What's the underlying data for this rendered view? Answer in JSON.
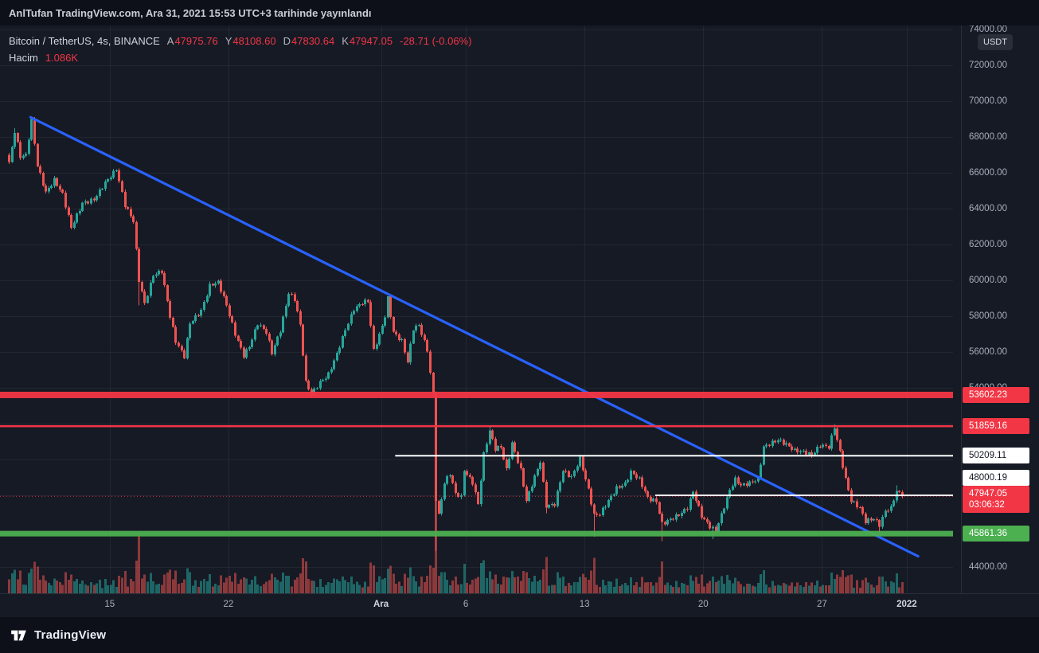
{
  "header": {
    "published_text": "AnlTufan TradingView.com, Ara 31, 2021 15:53 UTC+3 tarihinde yayınlandı"
  },
  "legend": {
    "title": "Bitcoin / TetherUS, 4s, BINANCE",
    "ohlc": [
      {
        "label": "A",
        "value": "47975.76"
      },
      {
        "label": "Y",
        "value": "48108.60"
      },
      {
        "label": "D",
        "value": "47830.64"
      },
      {
        "label": "K",
        "value": "47947.05"
      }
    ],
    "change": "-28.71 (-0.06%)",
    "volume_label": "Hacim",
    "volume_value": "1.086K"
  },
  "price_axis": {
    "currency_button": "USDT",
    "level_labels": [
      {
        "text": "53602.23",
        "price": 53602.23,
        "bg": "#f23645",
        "fg": "#ffffff",
        "dy": 0
      },
      {
        "text": "51859.16",
        "price": 51859.16,
        "bg": "#f23645",
        "fg": "#ffffff",
        "dy": 0
      },
      {
        "text": "50209.11",
        "price": 50209.11,
        "bg": "#ffffff",
        "fg": "#131722",
        "dy": 0
      },
      {
        "text": "48000.19",
        "price": 48000.19,
        "bg": "#ffffff",
        "fg": "#131722",
        "dy": -22
      },
      {
        "text": "45861.36",
        "price": 45861.36,
        "bg": "#4caf50",
        "fg": "#ffffff",
        "dy": 0
      }
    ],
    "current": {
      "text": "47947.05",
      "countdown": "03:06:32",
      "price": 47947.05,
      "bg": "#f23645",
      "fg": "#ffffff"
    }
  },
  "footer": {
    "brand": "TradingView"
  },
  "chart_data": {
    "type": "candlestick",
    "title": "Bitcoin / TetherUS, 4s, BINANCE",
    "symbol": "BTC/USDT",
    "exchange": "BINANCE",
    "interval": "4h",
    "current_bar": {
      "open": 47975.76,
      "high": 48108.6,
      "low": 47830.64,
      "close": 47947.05,
      "change": -28.71,
      "change_pct": -0.06,
      "volume": "1.086K"
    },
    "y_ticks": [
      74000,
      72000,
      70000,
      68000,
      66000,
      64000,
      62000,
      60000,
      58000,
      56000,
      54000,
      52000,
      50000,
      48000,
      46000,
      44000
    ],
    "time_labels": [
      {
        "text": "15",
        "bar": 36
      },
      {
        "text": "22",
        "bar": 78
      },
      {
        "text": "Ara",
        "bar": 132,
        "strong": true
      },
      {
        "text": "6",
        "bar": 162
      },
      {
        "text": "13",
        "bar": 204
      },
      {
        "text": "20",
        "bar": 246
      },
      {
        "text": "27",
        "bar": 288
      },
      {
        "text": "2022",
        "bar": 318,
        "strong": true
      }
    ],
    "bars": 317,
    "first_open": 67000,
    "price_anchors": [
      [
        0,
        66600
      ],
      [
        2,
        68300
      ],
      [
        4,
        66900
      ],
      [
        6,
        67000
      ],
      [
        8,
        68900
      ],
      [
        10,
        66400
      ],
      [
        13,
        64900
      ],
      [
        16,
        65600
      ],
      [
        19,
        64800
      ],
      [
        22,
        62950
      ],
      [
        26,
        64300
      ],
      [
        30,
        64500
      ],
      [
        34,
        65450
      ],
      [
        38,
        66200
      ],
      [
        41,
        64200
      ],
      [
        44,
        63300
      ],
      [
        46,
        60000
      ],
      [
        48,
        58700
      ],
      [
        51,
        60300
      ],
      [
        54,
        60500
      ],
      [
        57,
        58000
      ],
      [
        59,
        56600
      ],
      [
        62,
        55750
      ],
      [
        64,
        57600
      ],
      [
        68,
        58300
      ],
      [
        71,
        59700
      ],
      [
        74,
        59900
      ],
      [
        77,
        58600
      ],
      [
        80,
        57000
      ],
      [
        83,
        55800
      ],
      [
        85,
        56300
      ],
      [
        88,
        57600
      ],
      [
        91,
        57100
      ],
      [
        93,
        55950
      ],
      [
        96,
        57200
      ],
      [
        99,
        59300
      ],
      [
        101,
        58950
      ],
      [
        103,
        57500
      ],
      [
        105,
        54300
      ],
      [
        107,
        53650
      ],
      [
        110,
        54300
      ],
      [
        113,
        54750
      ],
      [
        116,
        55900
      ],
      [
        119,
        57250
      ],
      [
        122,
        58400
      ],
      [
        125,
        58750
      ],
      [
        127,
        58850
      ],
      [
        129,
        56100
      ],
      [
        131,
        56950
      ],
      [
        133,
        58000
      ],
      [
        134,
        59000
      ],
      [
        136,
        57100
      ],
      [
        139,
        56600
      ],
      [
        141,
        55450
      ],
      [
        143,
        57300
      ],
      [
        145,
        57500
      ],
      [
        148,
        56100
      ],
      [
        150,
        53600
      ],
      [
        151,
        47800
      ],
      [
        152,
        46900
      ],
      [
        154,
        48700
      ],
      [
        156,
        49200
      ],
      [
        158,
        48100
      ],
      [
        160,
        47900
      ],
      [
        161,
        49400
      ],
      [
        164,
        48700
      ],
      [
        166,
        47500
      ],
      [
        168,
        50300
      ],
      [
        170,
        51600
      ],
      [
        172,
        50600
      ],
      [
        174,
        50700
      ],
      [
        176,
        49400
      ],
      [
        178,
        50900
      ],
      [
        181,
        49400
      ],
      [
        183,
        47700
      ],
      [
        185,
        48600
      ],
      [
        188,
        49900
      ],
      [
        190,
        47400
      ],
      [
        193,
        47500
      ],
      [
        196,
        49400
      ],
      [
        199,
        49000
      ],
      [
        202,
        50050
      ],
      [
        205,
        48300
      ],
      [
        207,
        46900
      ],
      [
        209,
        46950
      ],
      [
        212,
        47700
      ],
      [
        215,
        48400
      ],
      [
        218,
        48650
      ],
      [
        220,
        49300
      ],
      [
        223,
        48900
      ],
      [
        226,
        47850
      ],
      [
        229,
        47650
      ],
      [
        231,
        46400
      ],
      [
        234,
        46650
      ],
      [
        237,
        46900
      ],
      [
        240,
        47300
      ],
      [
        242,
        48200
      ],
      [
        245,
        46850
      ],
      [
        248,
        46250
      ],
      [
        250,
        46050
      ],
      [
        252,
        46900
      ],
      [
        255,
        48300
      ],
      [
        257,
        48900
      ],
      [
        259,
        48550
      ],
      [
        262,
        48700
      ],
      [
        265,
        48900
      ],
      [
        267,
        50700
      ],
      [
        269,
        50850
      ],
      [
        272,
        51100
      ],
      [
        275,
        50850
      ],
      [
        278,
        50500
      ],
      [
        281,
        50430
      ],
      [
        284,
        50250
      ],
      [
        287,
        50800
      ],
      [
        290,
        50700
      ],
      [
        292,
        51800
      ],
      [
        294,
        50400
      ],
      [
        296,
        48900
      ],
      [
        298,
        47700
      ],
      [
        301,
        47300
      ],
      [
        303,
        46550
      ],
      [
        306,
        46700
      ],
      [
        308,
        46350
      ],
      [
        310,
        47120
      ],
      [
        312,
        47300
      ],
      [
        314,
        48250
      ],
      [
        316,
        47947.05
      ]
    ],
    "zigzag_amp": 110,
    "wick_amp": 170,
    "spikes": [
      {
        "bar": 2,
        "high": 68500
      },
      {
        "bar": 8,
        "high": 69000
      },
      {
        "bar": 46,
        "low": 58600
      },
      {
        "bar": 62,
        "low": 55600
      },
      {
        "bar": 83,
        "low": 55600
      },
      {
        "bar": 107,
        "low": 53480
      },
      {
        "bar": 134,
        "high": 59100
      },
      {
        "bar": 151,
        "low": 44900
      },
      {
        "bar": 170,
        "high": 51850
      },
      {
        "bar": 190,
        "low": 47000
      },
      {
        "bar": 207,
        "low": 45700
      },
      {
        "bar": 231,
        "low": 45450
      },
      {
        "bar": 249,
        "low": 45560
      },
      {
        "bar": 292,
        "high": 51950
      },
      {
        "bar": 308,
        "low": 45900
      },
      {
        "bar": 314,
        "high": 48548
      }
    ],
    "volume": {
      "base": 4,
      "range_factor": 0.022,
      "max_height": 148
    },
    "levels": [
      {
        "price": 53602.23,
        "style": "band",
        "thickness": 8,
        "color": "#f23645"
      },
      {
        "price": 51859.16,
        "style": "line",
        "thickness": 2.5,
        "color": "#f23645"
      },
      {
        "price": 50209.11,
        "style": "line",
        "thickness": 2,
        "color": "#ffffff",
        "start_bar": 137
      },
      {
        "price": 48000.19,
        "style": "line",
        "thickness": 2,
        "color": "#ffffff",
        "start_bar": 229
      },
      {
        "price": 45861.36,
        "style": "band",
        "thickness": 7,
        "color": "#4caf50"
      }
    ],
    "current_price_line": {
      "price": 47947.05,
      "color": "#f23645"
    },
    "trendline": {
      "start_bar": 8,
      "start_price": 69100,
      "end_bar": 322,
      "end_price": 44600,
      "color": "#2962ff",
      "width": 3.2
    },
    "colors": {
      "up": "#26a69a",
      "down": "#ef5350",
      "vol_up": "rgba(38,166,154,0.55)",
      "vol_down": "rgba(239,83,80,0.55)",
      "grid": "rgba(242,245,250,0.06)",
      "background": "#161a25",
      "accent_red": "#f23645",
      "accent_green": "#4caf50",
      "accent_blue": "#2962ff"
    }
  }
}
